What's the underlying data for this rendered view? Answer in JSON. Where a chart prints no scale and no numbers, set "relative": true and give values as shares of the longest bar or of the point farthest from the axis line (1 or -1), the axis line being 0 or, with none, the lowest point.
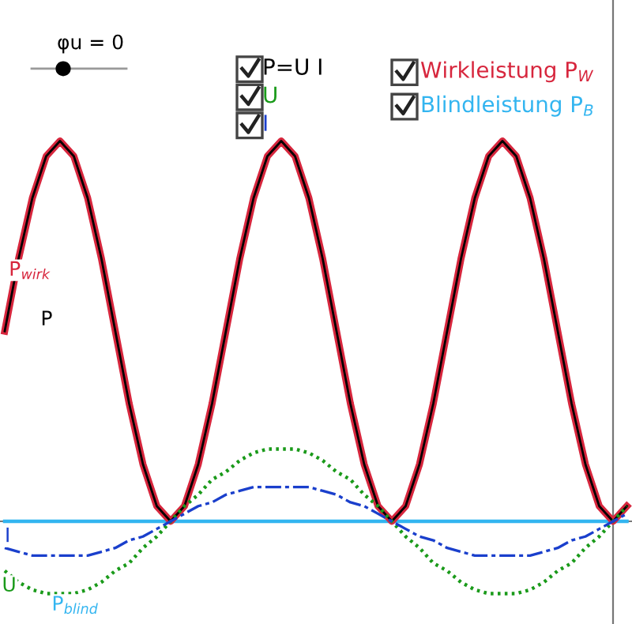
{
  "chart_data": {
    "type": "line",
    "relative": true,
    "grid": false,
    "legend": false,
    "categories": [
      null,
      null,
      null,
      null,
      null,
      null,
      null,
      null,
      null,
      null,
      null,
      null,
      null,
      null,
      null,
      null,
      null,
      null,
      null,
      null,
      null,
      null,
      null,
      null,
      null,
      null,
      null,
      null,
      null,
      null,
      null,
      null,
      null,
      null,
      null,
      null,
      null,
      null,
      null,
      null,
      null,
      null,
      null,
      null,
      null,
      null
    ],
    "series": [
      {
        "name": "P",
        "color": "#000000",
        "line_style": "solid",
        "values": [
          0.5,
          0.69,
          0.85,
          0.96,
          1,
          0.96,
          0.85,
          0.69,
          0.5,
          0.31,
          0.15,
          0.04,
          0,
          0.04,
          0.15,
          0.31,
          0.5,
          0.69,
          0.85,
          0.96,
          1,
          0.96,
          0.85,
          0.69,
          0.5,
          0.31,
          0.15,
          0.04,
          0,
          0.04,
          0.15,
          0.31,
          0.5,
          0.69,
          0.85,
          0.96,
          1,
          0.96,
          0.85,
          0.69,
          0.5,
          0.31,
          0.15,
          0.04,
          0,
          0.04
        ]
      },
      {
        "name": "P$_{wirk}$",
        "color": "#d7263d",
        "line_style": "solid",
        "values": [
          0.5,
          0.69,
          0.85,
          0.96,
          1,
          0.96,
          0.85,
          0.69,
          0.5,
          0.31,
          0.15,
          0.04,
          0,
          0.04,
          0.15,
          0.31,
          0.5,
          0.69,
          0.85,
          0.96,
          1,
          0.96,
          0.85,
          0.69,
          0.5,
          0.31,
          0.15,
          0.04,
          0,
          0.04,
          0.15,
          0.31,
          0.5,
          0.69,
          0.85,
          0.96,
          1,
          0.96,
          0.85,
          0.69,
          0.5,
          0.31,
          0.15,
          0.04,
          0,
          0.04
        ]
      },
      {
        "name": "U",
        "color": "#1a9a1a",
        "line_style": "dotted",
        "values": [
          -0.13,
          -0.16,
          -0.18,
          -0.19,
          -0.19,
          -0.19,
          -0.18,
          -0.16,
          -0.13,
          -0.11,
          -0.07,
          -0.04,
          0,
          0.04,
          0.07,
          0.11,
          0.13,
          0.16,
          0.18,
          0.19,
          0.19,
          0.19,
          0.18,
          0.16,
          0.13,
          0.11,
          0.07,
          0.04,
          0,
          -0.04,
          -0.07,
          -0.11,
          -0.13,
          -0.16,
          -0.18,
          -0.19,
          -0.19,
          -0.19,
          -0.18,
          -0.16,
          -0.13,
          -0.11,
          -0.07,
          -0.04,
          0,
          0.04
        ]
      },
      {
        "name": "I",
        "color": "#1a3fcc",
        "line_style": "dashed",
        "values": [
          -0.07,
          -0.08,
          -0.09,
          -0.09,
          -0.09,
          -0.09,
          -0.09,
          -0.08,
          -0.07,
          -0.05,
          -0.04,
          -0.02,
          0,
          0.02,
          0.04,
          0.05,
          0.07,
          0.08,
          0.09,
          0.09,
          0.09,
          0.09,
          0.09,
          0.08,
          0.07,
          0.05,
          0.04,
          0.02,
          0,
          -0.02,
          -0.04,
          -0.05,
          -0.07,
          -0.08,
          -0.09,
          -0.09,
          -0.09,
          -0.09,
          -0.09,
          -0.08,
          -0.07,
          -0.05,
          -0.04,
          -0.02,
          0,
          0.02
        ]
      },
      {
        "name": "P$_{blind}$",
        "color": "#33b5f0",
        "line_style": "solid",
        "values": [
          0,
          0,
          0,
          0,
          0,
          0,
          0,
          0,
          0,
          0,
          0,
          0,
          0,
          0,
          0,
          0,
          0,
          0,
          0,
          0,
          0,
          0,
          0,
          0,
          0,
          0,
          0,
          0,
          0,
          0,
          0,
          0,
          0,
          0,
          0,
          0,
          0,
          0,
          0,
          0,
          0,
          0,
          0,
          0,
          0,
          0
        ]
      }
    ],
    "annotations": [
      "φu = 0",
      "P=U I",
      "U",
      "I",
      "Wirkleistung P$_{W}$",
      "Blindleistung P$_{B}$"
    ]
  }
}
